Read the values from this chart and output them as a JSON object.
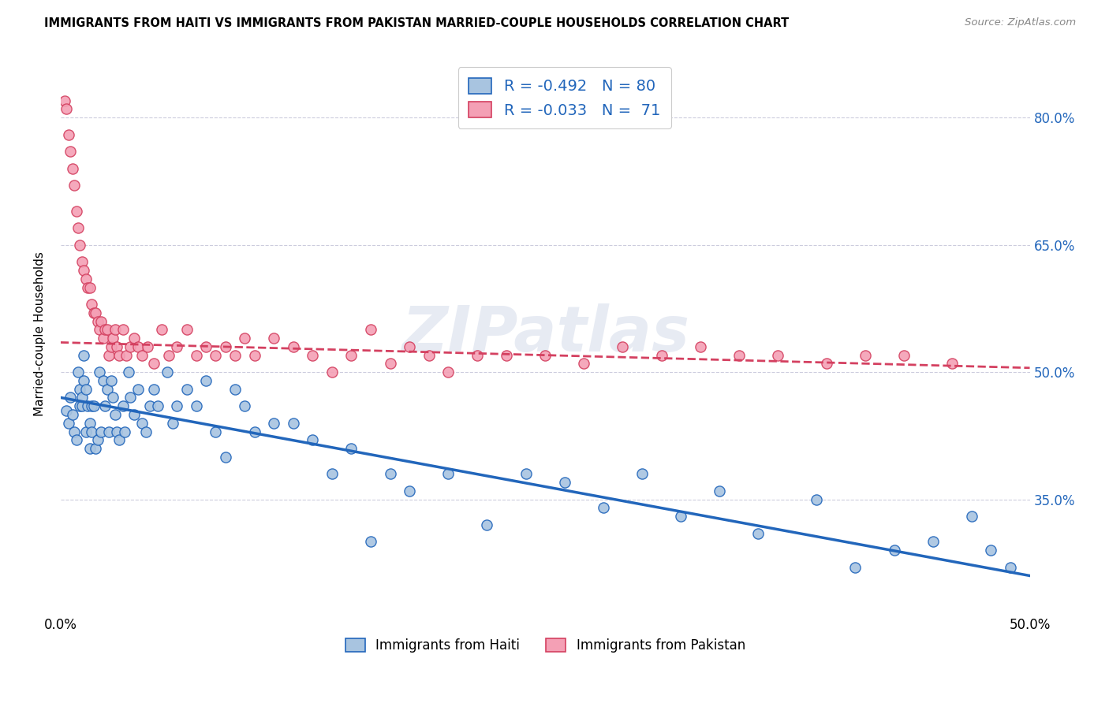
{
  "title": "IMMIGRANTS FROM HAITI VS IMMIGRANTS FROM PAKISTAN MARRIED-COUPLE HOUSEHOLDS CORRELATION CHART",
  "source": "Source: ZipAtlas.com",
  "ylabel": "Married-couple Households",
  "ytick_labels": [
    "80.0%",
    "65.0%",
    "50.0%",
    "35.0%"
  ],
  "ytick_values": [
    0.8,
    0.65,
    0.5,
    0.35
  ],
  "xlim": [
    0.0,
    0.5
  ],
  "ylim": [
    0.215,
    0.875
  ],
  "haiti_R": -0.492,
  "haiti_N": 80,
  "pakistan_R": -0.033,
  "pakistan_N": 71,
  "haiti_color": "#a8c4e0",
  "haiti_line_color": "#2266bb",
  "pakistan_color": "#f4a0b5",
  "pakistan_line_color": "#d44060",
  "watermark": "ZIPatlas",
  "background_color": "#ffffff",
  "haiti_x": [
    0.003,
    0.004,
    0.005,
    0.006,
    0.007,
    0.008,
    0.009,
    0.01,
    0.01,
    0.011,
    0.011,
    0.012,
    0.012,
    0.013,
    0.013,
    0.014,
    0.015,
    0.015,
    0.016,
    0.016,
    0.017,
    0.018,
    0.019,
    0.02,
    0.021,
    0.022,
    0.023,
    0.024,
    0.025,
    0.026,
    0.027,
    0.028,
    0.029,
    0.03,
    0.032,
    0.033,
    0.035,
    0.036,
    0.038,
    0.04,
    0.042,
    0.044,
    0.046,
    0.048,
    0.05,
    0.055,
    0.058,
    0.06,
    0.065,
    0.07,
    0.075,
    0.08,
    0.085,
    0.09,
    0.095,
    0.1,
    0.11,
    0.12,
    0.13,
    0.14,
    0.15,
    0.16,
    0.17,
    0.18,
    0.2,
    0.22,
    0.24,
    0.26,
    0.28,
    0.3,
    0.32,
    0.34,
    0.36,
    0.39,
    0.41,
    0.43,
    0.45,
    0.47,
    0.48,
    0.49
  ],
  "haiti_y": [
    0.455,
    0.44,
    0.47,
    0.45,
    0.43,
    0.42,
    0.5,
    0.48,
    0.46,
    0.47,
    0.46,
    0.52,
    0.49,
    0.48,
    0.43,
    0.46,
    0.44,
    0.41,
    0.46,
    0.43,
    0.46,
    0.41,
    0.42,
    0.5,
    0.43,
    0.49,
    0.46,
    0.48,
    0.43,
    0.49,
    0.47,
    0.45,
    0.43,
    0.42,
    0.46,
    0.43,
    0.5,
    0.47,
    0.45,
    0.48,
    0.44,
    0.43,
    0.46,
    0.48,
    0.46,
    0.5,
    0.44,
    0.46,
    0.48,
    0.46,
    0.49,
    0.43,
    0.4,
    0.48,
    0.46,
    0.43,
    0.44,
    0.44,
    0.42,
    0.38,
    0.41,
    0.3,
    0.38,
    0.36,
    0.38,
    0.32,
    0.38,
    0.37,
    0.34,
    0.38,
    0.33,
    0.36,
    0.31,
    0.35,
    0.27,
    0.29,
    0.3,
    0.33,
    0.29,
    0.27
  ],
  "pakistan_x": [
    0.002,
    0.003,
    0.004,
    0.005,
    0.006,
    0.007,
    0.008,
    0.009,
    0.01,
    0.011,
    0.012,
    0.013,
    0.014,
    0.015,
    0.016,
    0.017,
    0.018,
    0.019,
    0.02,
    0.021,
    0.022,
    0.023,
    0.024,
    0.025,
    0.026,
    0.027,
    0.028,
    0.029,
    0.03,
    0.032,
    0.034,
    0.036,
    0.038,
    0.04,
    0.042,
    0.045,
    0.048,
    0.052,
    0.056,
    0.06,
    0.065,
    0.07,
    0.075,
    0.08,
    0.085,
    0.09,
    0.095,
    0.1,
    0.11,
    0.12,
    0.13,
    0.14,
    0.15,
    0.16,
    0.17,
    0.18,
    0.19,
    0.2,
    0.215,
    0.23,
    0.25,
    0.27,
    0.29,
    0.31,
    0.33,
    0.35,
    0.37,
    0.395,
    0.415,
    0.435,
    0.46
  ],
  "pakistan_y": [
    0.82,
    0.81,
    0.78,
    0.76,
    0.74,
    0.72,
    0.69,
    0.67,
    0.65,
    0.63,
    0.62,
    0.61,
    0.6,
    0.6,
    0.58,
    0.57,
    0.57,
    0.56,
    0.55,
    0.56,
    0.54,
    0.55,
    0.55,
    0.52,
    0.53,
    0.54,
    0.55,
    0.53,
    0.52,
    0.55,
    0.52,
    0.53,
    0.54,
    0.53,
    0.52,
    0.53,
    0.51,
    0.55,
    0.52,
    0.53,
    0.55,
    0.52,
    0.53,
    0.52,
    0.53,
    0.52,
    0.54,
    0.52,
    0.54,
    0.53,
    0.52,
    0.5,
    0.52,
    0.55,
    0.51,
    0.53,
    0.52,
    0.5,
    0.52,
    0.52,
    0.52,
    0.51,
    0.53,
    0.52,
    0.53,
    0.52,
    0.52,
    0.51,
    0.52,
    0.52,
    0.51
  ]
}
